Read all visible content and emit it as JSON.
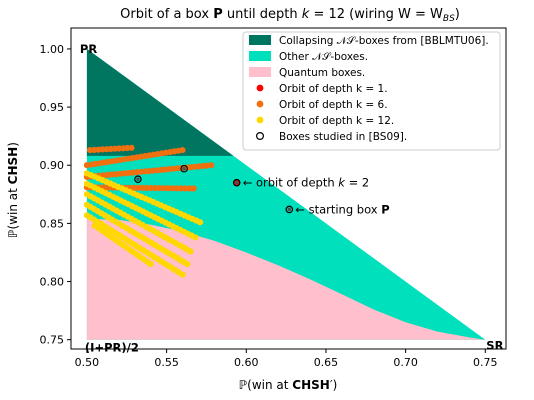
{
  "chart_data": {
    "type": "scatter",
    "title": "Orbit of a box P until depth k = 12 (wiring W = W_BS)",
    "title_parts": {
      "prefix": "Orbit of a box ",
      "bold": "P",
      "middle": " until depth ",
      "k_symbol": "k",
      "k_value": " = 12 (wiring W = W",
      "subscript": "BS",
      "suffix": ")"
    },
    "xlabel": {
      "prefix": "ℙ(win at ",
      "bold": "CHSH",
      "suffix": "′)"
    },
    "ylabel": {
      "prefix": "ℙ(win at ",
      "bold": "CHSH",
      "suffix": ")"
    },
    "xlim": [
      0.49,
      0.763
    ],
    "ylim": [
      0.742,
      1.018
    ],
    "xticks": [
      "0.50",
      "0.55",
      "0.60",
      "0.65",
      "0.70",
      "0.75"
    ],
    "yticks": [
      "0.75",
      "0.80",
      "0.85",
      "0.90",
      "0.95",
      "1.00"
    ],
    "grid": false,
    "legend_position": "top-right",
    "legend": [
      {
        "label": "Collapsing 𝒩𝒮-boxes from [BBLMTU06].",
        "kind": "patch",
        "color": "#007560"
      },
      {
        "label": "Other 𝒩𝒮-boxes.",
        "kind": "patch",
        "color": "#00e0bc"
      },
      {
        "label": "Quantum boxes.",
        "kind": "patch",
        "color": "#ffbfcc"
      },
      {
        "label": "Orbit of depth k = 1.",
        "kind": "dot",
        "color": "#ff0000"
      },
      {
        "label": "Orbit of depth k = 6.",
        "kind": "dot",
        "color": "#f07010"
      },
      {
        "label": "Orbit of depth k = 12.",
        "kind": "dot",
        "color": "#ffd800"
      },
      {
        "label": "Boxes studied in [BS09].",
        "kind": "ring",
        "color": "#000000"
      }
    ],
    "corner_labels": [
      {
        "text": "PR",
        "x": 0.5,
        "y": 1.0
      },
      {
        "text": "SR",
        "x": 0.75,
        "y": 0.75
      },
      {
        "text": "(I+PR)/2",
        "x": 0.5,
        "y": 0.75
      }
    ],
    "regions": {
      "ns_triangle": [
        [
          0.5,
          1.0
        ],
        [
          0.75,
          0.75
        ],
        [
          0.5,
          0.75
        ]
      ],
      "collapsing": [
        [
          0.5,
          1.0
        ],
        [
          0.5,
          0.908
        ],
        [
          0.592,
          0.908
        ]
      ],
      "quantum_curve": [
        [
          0.5,
          0.854
        ],
        [
          0.52,
          0.853
        ],
        [
          0.54,
          0.849
        ],
        [
          0.56,
          0.843
        ],
        [
          0.58,
          0.835
        ],
        [
          0.6,
          0.825
        ],
        [
          0.62,
          0.814
        ],
        [
          0.64,
          0.802
        ],
        [
          0.66,
          0.789
        ],
        [
          0.68,
          0.776
        ],
        [
          0.7,
          0.765
        ],
        [
          0.72,
          0.757
        ],
        [
          0.74,
          0.752
        ],
        [
          0.75,
          0.75
        ]
      ]
    },
    "annotations": [
      {
        "text_prefix": "← orbit of depth ",
        "k_symbol": "k",
        "text_suffix": " = 2",
        "x": 0.594,
        "y": 0.885
      },
      {
        "text_prefix": "← starting box ",
        "bold": "P",
        "x": 0.627,
        "y": 0.862
      }
    ],
    "series": [
      {
        "name": "Orbit of depth k = 6.",
        "color": "#f07010",
        "bands": [
          {
            "x0": 0.502,
            "y0": 0.913,
            "x1": 0.528,
            "y1": 0.915
          },
          {
            "x0": 0.5,
            "y0": 0.9,
            "x1": 0.56,
            "y1": 0.913
          },
          {
            "x0": 0.5,
            "y0": 0.89,
            "x1": 0.578,
            "y1": 0.9
          },
          {
            "x0": 0.5,
            "y0": 0.881,
            "x1": 0.567,
            "y1": 0.88
          }
        ]
      },
      {
        "name": "Orbit of depth k = 12.",
        "color": "#ffd800",
        "bands": [
          {
            "x0": 0.5,
            "y0": 0.893,
            "x1": 0.571,
            "y1": 0.851
          },
          {
            "x0": 0.5,
            "y0": 0.884,
            "x1": 0.568,
            "y1": 0.838
          },
          {
            "x0": 0.5,
            "y0": 0.875,
            "x1": 0.565,
            "y1": 0.826
          },
          {
            "x0": 0.5,
            "y0": 0.866,
            "x1": 0.563,
            "y1": 0.815
          },
          {
            "x0": 0.5,
            "y0": 0.857,
            "x1": 0.56,
            "y1": 0.806
          },
          {
            "x0": 0.505,
            "y0": 0.848,
            "x1": 0.54,
            "y1": 0.815
          }
        ]
      },
      {
        "name": "Orbit of depth k = 1.",
        "color": "#ff0000",
        "points": [
          [
            0.594,
            0.885
          ]
        ]
      },
      {
        "name": "Boxes studied in [BS09].",
        "color": "#000000",
        "points": [
          [
            0.532,
            0.888
          ],
          [
            0.561,
            0.897
          ],
          [
            0.594,
            0.885
          ],
          [
            0.627,
            0.862
          ]
        ]
      }
    ]
  }
}
